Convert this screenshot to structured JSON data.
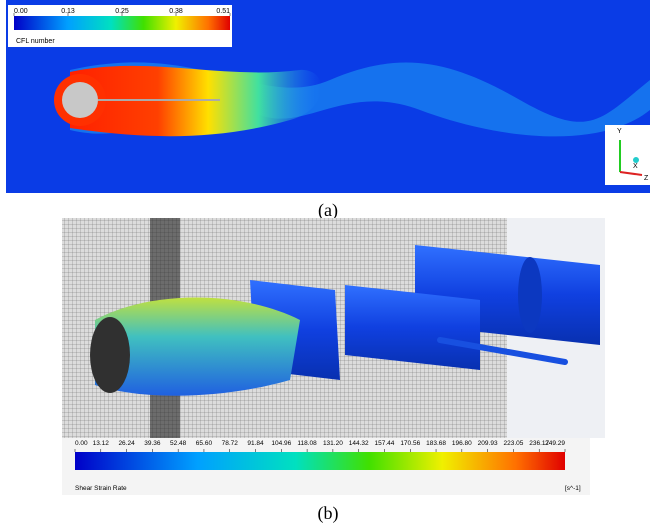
{
  "panels": [
    {
      "caption": "(a)",
      "colorbar": {
        "ticks": [
          "0.00",
          "0.13",
          "0.25",
          "0.38",
          "0.51"
        ],
        "label": "CFL number"
      },
      "axes": [
        "Y",
        "X",
        "Z"
      ]
    },
    {
      "caption": "(b)",
      "colorbar": {
        "ticks": [
          "0.00",
          "13.12",
          "26.24",
          "39.36",
          "52.48",
          "65.60",
          "78.72",
          "91.84",
          "104.96",
          "118.08",
          "131.20",
          "144.32",
          "157.44",
          "170.56",
          "183.68",
          "196.80",
          "209.93",
          "223.05",
          "236.17",
          "249.29"
        ],
        "label": "Shear Strain Rate",
        "unit": "[s^-1]"
      }
    }
  ]
}
